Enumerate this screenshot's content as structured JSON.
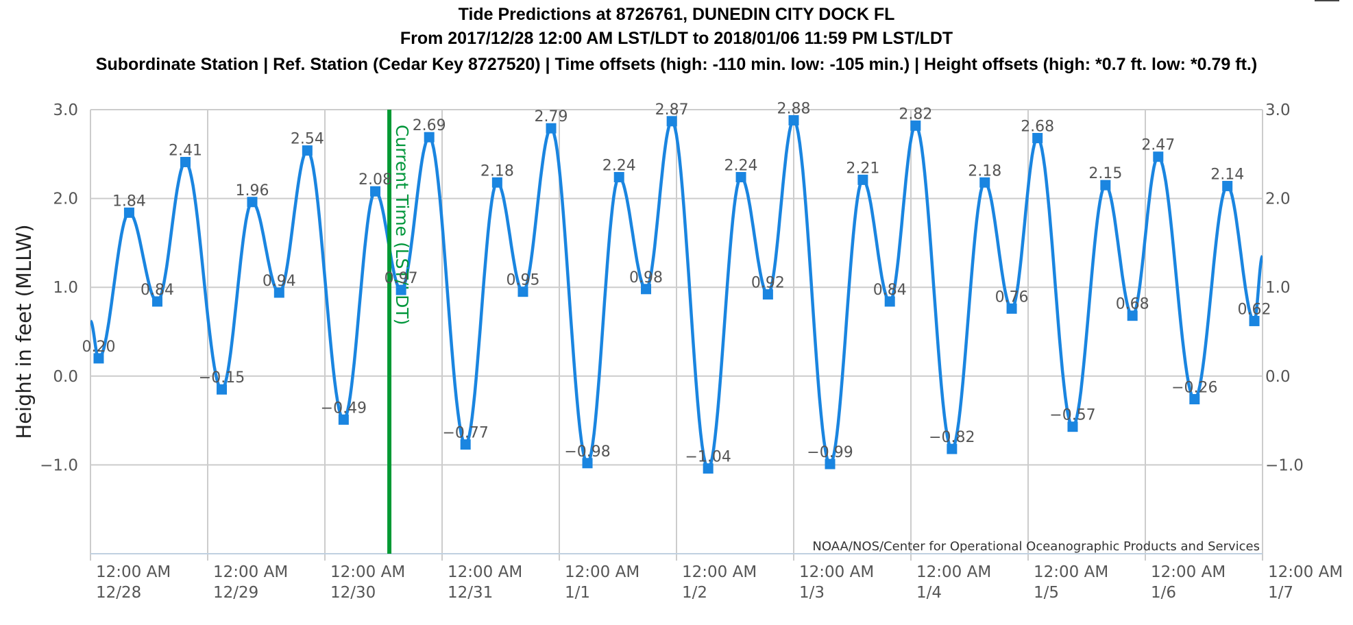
{
  "chart_data": {
    "type": "line",
    "title": "Tide Predictions at 8726761, DUNEDIN CITY DOCK FL",
    "subtitle": "From 2017/12/28 12:00 AM LST/LDT to 2018/01/06 11:59 PM LST/LDT",
    "subtitle2": "Subordinate Station | Ref. Station (Cedar Key 8727520) | Time offsets (high: -110 min. low: -105 min.) | Height offsets (high: *0.7 ft. low: *0.79 ft.)",
    "ylabel": "Height in feet (MLLW)",
    "ylim": [
      -2.0,
      3.0
    ],
    "yticks": [
      3.0,
      2.0,
      1.0,
      0.0,
      -1.0
    ],
    "ytick_labels": [
      "3.0",
      "2.0",
      "1.0",
      "0.0",
      "−1.0"
    ],
    "xlim_days": [
      0,
      10
    ],
    "xticks": [
      {
        "day": 0,
        "time": "12:00 AM",
        "date": "12/28"
      },
      {
        "day": 1,
        "time": "12:00 AM",
        "date": "12/29"
      },
      {
        "day": 2,
        "time": "12:00 AM",
        "date": "12/30"
      },
      {
        "day": 3,
        "time": "12:00 AM",
        "date": "12/31"
      },
      {
        "day": 4,
        "time": "12:00 AM",
        "date": "1/1"
      },
      {
        "day": 5,
        "time": "12:00 AM",
        "date": "1/2"
      },
      {
        "day": 6,
        "time": "12:00 AM",
        "date": "1/3"
      },
      {
        "day": 7,
        "time": "12:00 AM",
        "date": "1/4"
      },
      {
        "day": 8,
        "time": "12:00 AM",
        "date": "1/5"
      },
      {
        "day": 9,
        "time": "12:00 AM",
        "date": "1/6"
      },
      {
        "day": 10,
        "time": "12:00 AM",
        "date": "1/7"
      }
    ],
    "series": [
      {
        "color": "#1a85e0",
        "points": [
          {
            "day": 0.07,
            "value": 0.2,
            "label": "0.20"
          },
          {
            "day": 0.33,
            "value": 1.84,
            "label": "1.84"
          },
          {
            "day": 0.57,
            "value": 0.84,
            "label": "0.84"
          },
          {
            "day": 0.81,
            "value": 2.41,
            "label": "2.41"
          },
          {
            "day": 1.12,
            "value": -0.15,
            "label": "−0.15"
          },
          {
            "day": 1.38,
            "value": 1.96,
            "label": "1.96"
          },
          {
            "day": 1.61,
            "value": 0.94,
            "label": "0.94"
          },
          {
            "day": 1.85,
            "value": 2.54,
            "label": "2.54"
          },
          {
            "day": 2.16,
            "value": -0.49,
            "label": "−0.49"
          },
          {
            "day": 2.43,
            "value": 2.08,
            "label": "2.08"
          },
          {
            "day": 2.65,
            "value": 0.97,
            "label": "0.97"
          },
          {
            "day": 2.89,
            "value": 2.69,
            "label": "2.69"
          },
          {
            "day": 3.2,
            "value": -0.77,
            "label": "−0.77"
          },
          {
            "day": 3.47,
            "value": 2.18,
            "label": "2.18"
          },
          {
            "day": 3.69,
            "value": 0.95,
            "label": "0.95"
          },
          {
            "day": 3.93,
            "value": 2.79,
            "label": "2.79"
          },
          {
            "day": 4.24,
            "value": -0.98,
            "label": "−0.98"
          },
          {
            "day": 4.51,
            "value": 2.24,
            "label": "2.24"
          },
          {
            "day": 4.74,
            "value": 0.98,
            "label": "0.98"
          },
          {
            "day": 4.96,
            "value": 2.87,
            "label": "2.87"
          },
          {
            "day": 5.27,
            "value": -1.04,
            "label": "−1.04"
          },
          {
            "day": 5.55,
            "value": 2.24,
            "label": "2.24"
          },
          {
            "day": 5.78,
            "value": 0.92,
            "label": "0.92"
          },
          {
            "day": 6.0,
            "value": 2.88,
            "label": "2.88"
          },
          {
            "day": 6.31,
            "value": -0.99,
            "label": "−0.99"
          },
          {
            "day": 6.59,
            "value": 2.21,
            "label": "2.21"
          },
          {
            "day": 6.82,
            "value": 0.84,
            "label": "0.84"
          },
          {
            "day": 7.04,
            "value": 2.82,
            "label": "2.82"
          },
          {
            "day": 7.35,
            "value": -0.82,
            "label": "−0.82"
          },
          {
            "day": 7.63,
            "value": 2.18,
            "label": "2.18"
          },
          {
            "day": 7.86,
            "value": 0.76,
            "label": "0.76"
          },
          {
            "day": 8.08,
            "value": 2.68,
            "label": "2.68"
          },
          {
            "day": 8.38,
            "value": -0.57,
            "label": "−0.57"
          },
          {
            "day": 8.66,
            "value": 2.15,
            "label": "2.15"
          },
          {
            "day": 8.89,
            "value": 0.68,
            "label": "0.68"
          },
          {
            "day": 9.11,
            "value": 2.47,
            "label": "2.47"
          },
          {
            "day": 9.42,
            "value": -0.26,
            "label": "−0.26"
          },
          {
            "day": 9.7,
            "value": 2.14,
            "label": "2.14"
          },
          {
            "day": 9.93,
            "value": 0.62,
            "label": "0.62"
          }
        ],
        "edges": {
          "start": {
            "day": 0.0,
            "value": 0.62
          },
          "end": {
            "day": 10.0,
            "value": 1.35
          }
        }
      }
    ],
    "current_time": {
      "day": 2.55,
      "label": "Current Time (LST/LDT)",
      "color": "#009933"
    },
    "credit": "NOAA/NOS/Center for Operational Oceanographic Products and Services",
    "grid": true
  }
}
